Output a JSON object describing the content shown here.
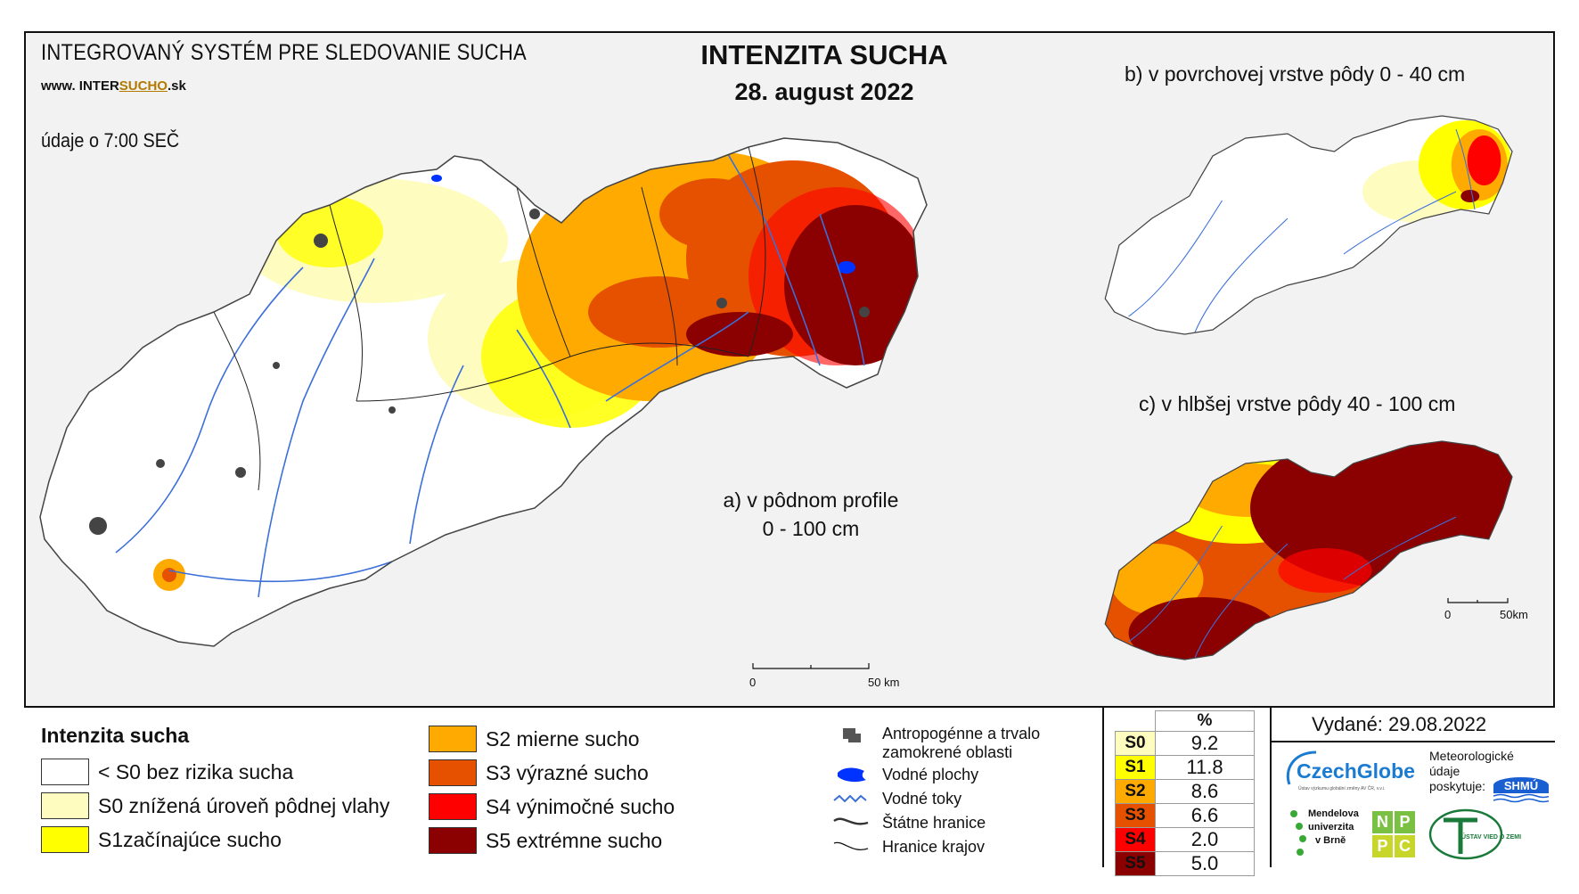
{
  "header": {
    "system_title": "INTEGROVANÝ SYSTÉM PRE SLEDOVANIE SUCHA",
    "website_prefix": "www. INTER",
    "website_mid": "SUCHO",
    "website_suffix": ".sk",
    "main_title": "INTENZITA SUCHA",
    "date": "28. august 2022",
    "data_time": "údaje o 7:00 SEČ"
  },
  "maps": {
    "a_label_line1": "a) v pôdnom profile",
    "a_label_line2": "0 - 100 cm",
    "b_label": "b) v povrchovej vrstve pôdy 0 - 40 cm",
    "c_label": "c) v hlbšej vrstve pôdy 40 - 100 cm",
    "scale_main_start": "0",
    "scale_main_end": "50 km",
    "scale_small_start": "0",
    "scale_small_end": "50km"
  },
  "legend": {
    "title": "Intenzita sucha",
    "items": [
      {
        "label": "< S0 bez rizika sucha",
        "color": "#ffffff"
      },
      {
        "label": "S0 znížená úroveň pôdnej vlahy",
        "color": "#fffcc0"
      },
      {
        "label": "S1začínajúce sucho",
        "color": "#ffff00"
      },
      {
        "label": "S2 mierne sucho",
        "color": "#ffaa00"
      },
      {
        "label": "S3 výrazné sucho",
        "color": "#e65100"
      },
      {
        "label": "S4 výnimočné sucho",
        "color": "#ff0000"
      },
      {
        "label": "S5 extrémne sucho",
        "color": "#8b0000"
      }
    ]
  },
  "aux_legend": {
    "anthro_line1": "Antropogénne a trvalo",
    "anthro_line2": "zamokrené oblasti",
    "water_areas": "Vodné plochy",
    "water_streams": "Vodné toky",
    "state_border": "Štátne hranice",
    "region_border": "Hranice krajov"
  },
  "percent_table": {
    "header": "%",
    "rows": [
      {
        "cls": "S0",
        "value": "9.2",
        "color": "#fffcc0"
      },
      {
        "cls": "S1",
        "value": "11.8",
        "color": "#ffff00"
      },
      {
        "cls": "S2",
        "value": "8.6",
        "color": "#ffaa00"
      },
      {
        "cls": "S3",
        "value": "6.6",
        "color": "#e65100"
      },
      {
        "cls": "S4",
        "value": "2.0",
        "color": "#ff0000"
      },
      {
        "cls": "S5",
        "value": "5.0",
        "color": "#8b0000"
      }
    ]
  },
  "footer": {
    "issued": "Vydané: 29.08.2022",
    "czechglobe": "CzechGlobe",
    "czechglobe_sub": "Ústav výzkumu globální změny AV ČR, v.v.i.",
    "met_line1": "Meteorologické",
    "met_line2": "údaje",
    "met_line3": "poskytuje:",
    "shmu": "SHMÚ",
    "mendel_1": "Mendelova",
    "mendel_2": "univerzita",
    "mendel_3": "v Brně",
    "nppc": [
      "N",
      "P",
      "P",
      "C"
    ],
    "uvz": "ÚSTAV VIED O ZEMI"
  }
}
